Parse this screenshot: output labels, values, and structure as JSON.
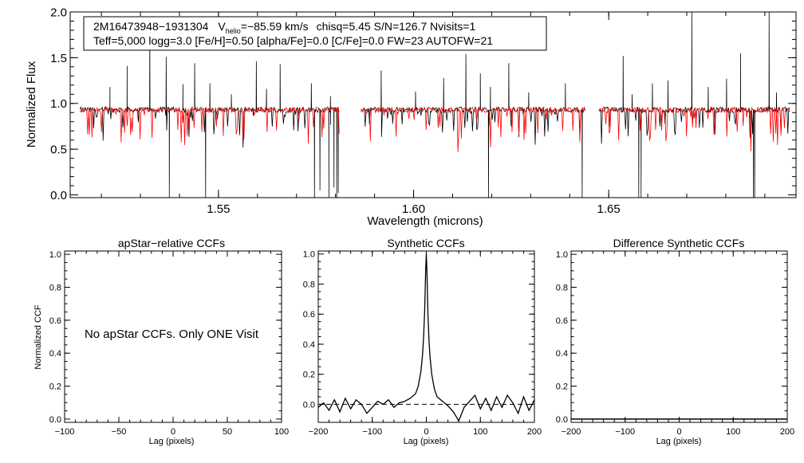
{
  "chart_data": [
    {
      "type": "line",
      "xlabel": "Wavelength (microns)",
      "ylabel": "Normalized Flux",
      "xlim": [
        1.512,
        1.698
      ],
      "ylim": [
        -0.03,
        2.0
      ],
      "xticks": [
        1.55,
        1.6,
        1.65
      ],
      "xtick_labels": [
        "1.55",
        "1.60",
        "1.65"
      ],
      "yticks": [
        0.0,
        0.5,
        1.0,
        1.5,
        2.0
      ],
      "ytick_labels": [
        "0.0",
        "0.5",
        "1.0",
        "1.5",
        "2.0"
      ],
      "annotation": {
        "id": "2M16473948−1931304",
        "v_label": "V",
        "v_sub": "helio",
        "v_value": "=−85.59 km/s",
        "stats": "chisq=5.45  S/N=126.7  Nvisits=1",
        "params": "Teff=5,000 logg=3.0 [Fe/H]=0.50 [alpha/Fe]=0.0 [C/Fe]=0.0 FW=23 AUTOFW=21"
      },
      "segments": [
        [
          1.5145,
          1.581
        ],
        [
          1.5865,
          1.644
        ],
        [
          1.6475,
          1.6965
        ]
      ],
      "series": [
        {
          "color": "#000000",
          "continuum": 0.93,
          "emission_spikes": [
            [
              1.5222,
              1.18
            ],
            [
              1.5266,
              1.41
            ],
            [
              1.5324,
              1.85
            ],
            [
              1.5366,
              1.51
            ],
            [
              1.5409,
              1.21
            ],
            [
              1.5439,
              1.44
            ],
            [
              1.5478,
              1.22
            ],
            [
              1.5533,
              1.1
            ],
            [
              1.5597,
              1.46
            ],
            [
              1.5623,
              1.16
            ],
            [
              1.5658,
              1.43
            ],
            [
              1.5738,
              1.22
            ],
            [
              1.5787,
              1.08
            ],
            [
              1.5917,
              1.36
            ],
            [
              1.6005,
              1.13
            ],
            [
              1.6077,
              1.28
            ],
            [
              1.6134,
              1.54
            ],
            [
              1.6171,
              1.33
            ],
            [
              1.6197,
              1.18
            ],
            [
              1.6244,
              1.44
            ],
            [
              1.6295,
              1.12
            ],
            [
              1.6389,
              1.22
            ],
            [
              1.6537,
              1.52
            ],
            [
              1.656,
              1.1
            ],
            [
              1.6612,
              1.22
            ],
            [
              1.6652,
              1.25
            ],
            [
              1.6713,
              2.0
            ],
            [
              1.6755,
              1.18
            ],
            [
              1.6802,
              1.27
            ],
            [
              1.6838,
              1.55
            ],
            [
              1.6911,
              2.0
            ],
            [
              1.693,
              1.12
            ]
          ],
          "absorption_spikes": [
            [
              1.5374,
              -0.03
            ],
            [
              1.5467,
              -0.03
            ],
            [
              1.5746,
              -0.03
            ],
            [
              1.576,
              0.05
            ],
            [
              1.5783,
              -0.03
            ],
            [
              1.5796,
              0.08
            ],
            [
              1.5803,
              -0.03
            ],
            [
              1.5807,
              0.02
            ],
            [
              1.5812,
              0.04
            ],
            [
              1.6192,
              -0.03
            ],
            [
              1.6432,
              -0.03
            ],
            [
              1.6577,
              -0.03
            ],
            [
              1.6583,
              -0.03
            ],
            [
              1.6871,
              -0.03
            ],
            [
              1.6874,
              -0.03
            ]
          ]
        },
        {
          "color": "#ff0000",
          "continuum": 0.93
        }
      ]
    },
    {
      "type": "line",
      "title": "apStar−relative CCFs",
      "xlabel": "Lag (pixels)",
      "ylabel": "Normalized CCF",
      "xlim": [
        -100,
        100
      ],
      "ylim": [
        -0.02,
        1.02
      ],
      "xticks": [
        -100,
        -50,
        0,
        50,
        100
      ],
      "xtick_labels": [
        "−100",
        "−50",
        "0",
        "50",
        "100"
      ],
      "yticks": [
        0.0,
        0.2,
        0.4,
        0.6,
        0.8,
        1.0
      ],
      "ytick_labels": [
        "0.0",
        "0.2",
        "0.4",
        "0.6",
        "0.8",
        "1.0"
      ],
      "message": "No apStar CCFs.  Only ONE Visit"
    },
    {
      "type": "line",
      "title": "Synthetic CCFs",
      "xlabel": "Lag (pixels)",
      "xlim": [
        -200,
        200
      ],
      "ylim": [
        -0.12,
        1.02
      ],
      "xticks": [
        -200,
        -100,
        0,
        100,
        200
      ],
      "xtick_labels": [
        "−200",
        "−100",
        "0",
        "100",
        "200"
      ],
      "yticks": [
        0.0,
        0.2,
        0.4,
        0.6,
        0.8,
        1.0
      ],
      "ytick_labels": [
        "0.0",
        "0.2",
        "0.4",
        "0.6",
        "0.8",
        "1.0"
      ],
      "peak_lag": 0,
      "peak_value": 1.0,
      "baseline": 0.0,
      "series": [
        {
          "color": "#000000",
          "x": [
            -200,
            -190,
            -180,
            -170,
            -160,
            -150,
            -140,
            -130,
            -120,
            -110,
            -100,
            -90,
            -80,
            -70,
            -60,
            -50,
            -40,
            -30,
            -20,
            -15,
            -10,
            -7,
            -5,
            -3,
            -2,
            -1,
            0,
            1,
            2,
            3,
            5,
            7,
            10,
            15,
            20,
            30,
            40,
            50,
            60,
            70,
            80,
            90,
            100,
            110,
            120,
            130,
            140,
            150,
            160,
            170,
            180,
            190,
            200
          ],
          "y": [
            -0.02,
            0.01,
            -0.04,
            0.03,
            -0.05,
            0.04,
            -0.03,
            0.03,
            0.0,
            -0.06,
            -0.02,
            0.02,
            0.0,
            0.03,
            -0.02,
            0.01,
            0.02,
            0.04,
            0.07,
            0.12,
            0.22,
            0.33,
            0.45,
            0.63,
            0.78,
            0.92,
            1.0,
            0.9,
            0.75,
            0.6,
            0.42,
            0.31,
            0.2,
            0.1,
            0.05,
            0.02,
            -0.01,
            -0.05,
            -0.11,
            -0.02,
            0.02,
            0.06,
            -0.03,
            0.04,
            -0.04,
            0.05,
            -0.02,
            0.06,
            0.01,
            -0.06,
            0.05,
            -0.04,
            0.03
          ]
        }
      ]
    },
    {
      "type": "line",
      "title": "Difference Synthetic CCFs",
      "xlabel": "Lag (pixels)",
      "xlim": [
        -200,
        200
      ],
      "ylim": [
        -0.02,
        1.02
      ],
      "xticks": [
        -200,
        -100,
        0,
        100,
        200
      ],
      "xtick_labels": [
        "−200",
        "−100",
        "0",
        "100",
        "200"
      ],
      "yticks": [
        0.0,
        0.2,
        0.4,
        0.6,
        0.8,
        1.0
      ],
      "ytick_labels": [
        "0.0",
        "0.2",
        "0.4",
        "0.6",
        "0.8",
        "1.0"
      ],
      "series": [
        {
          "color": "#000000",
          "x": [
            -200,
            200
          ],
          "y": [
            0.0,
            0.0
          ]
        }
      ]
    }
  ]
}
